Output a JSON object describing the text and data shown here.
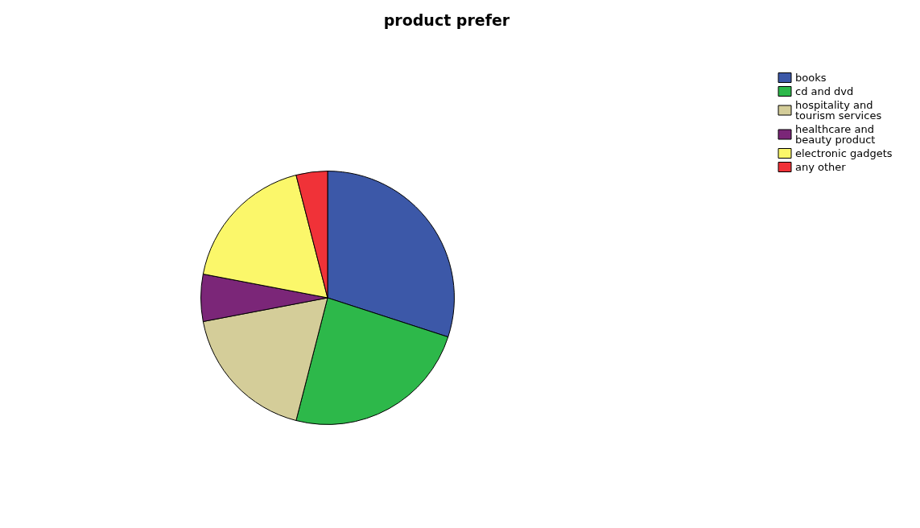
{
  "chart_data": {
    "type": "pie",
    "title": "product prefer",
    "categories": [
      "books",
      "cd and dvd",
      "hospitality and tourism services",
      "healthcare and beauty product",
      "electronic gadgets",
      "any other"
    ],
    "values": [
      30,
      24,
      18,
      6,
      18,
      4
    ],
    "colors": [
      "#3c58a8",
      "#2db84a",
      "#d4cd99",
      "#7b2678",
      "#fbf76a",
      "#f03238"
    ],
    "legend": "top right"
  }
}
